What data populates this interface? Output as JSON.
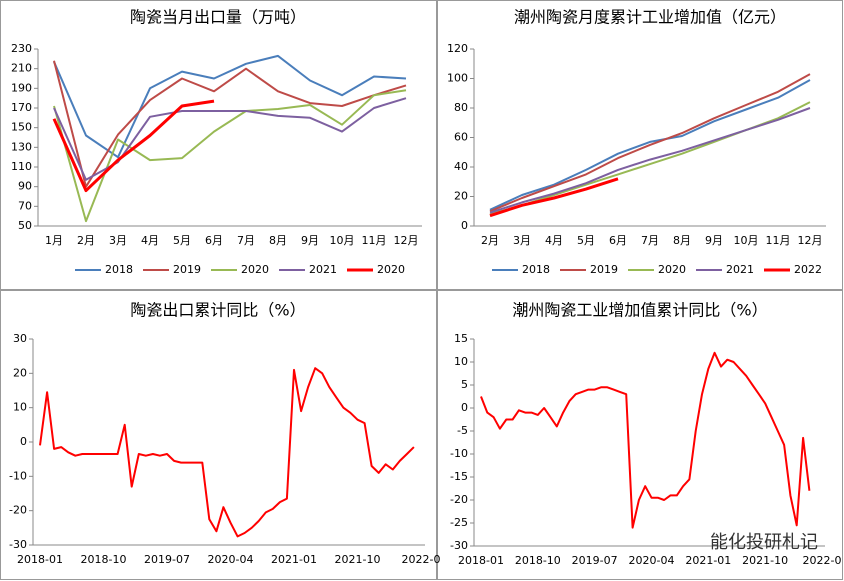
{
  "chart_data": [
    {
      "type": "line",
      "title": "陶瓷当月出口量（万吨）",
      "categories": [
        "1月",
        "2月",
        "3月",
        "4月",
        "5月",
        "6月",
        "7月",
        "8月",
        "9月",
        "10月",
        "11月",
        "12月"
      ],
      "ylim": [
        50,
        230
      ],
      "yticks": [
        50,
        70,
        90,
        110,
        130,
        150,
        170,
        190,
        210,
        230
      ],
      "series": [
        {
          "name": "2018",
          "color": "#4a7ebb",
          "values": [
            217,
            142,
            120,
            190,
            207,
            200,
            215,
            223,
            198,
            183,
            202,
            200
          ]
        },
        {
          "name": "2019",
          "color": "#be4b48",
          "values": [
            218,
            90,
            143,
            178,
            200,
            187,
            210,
            187,
            175,
            172,
            183,
            193
          ]
        },
        {
          "name": "2020",
          "color": "#98b954",
          "values": [
            172,
            55,
            138,
            117,
            119,
            146,
            167,
            169,
            173,
            153,
            183,
            188
          ]
        },
        {
          "name": "2021",
          "color": "#7d60a0",
          "values": [
            170,
            97,
            115,
            161,
            167,
            167,
            167,
            162,
            160,
            146,
            170,
            180
          ]
        },
        {
          "name": "2020",
          "color": "#ff0000",
          "values": [
            159,
            86,
            117,
            142,
            172,
            177,
            null,
            null,
            null,
            null,
            null,
            null
          ]
        }
      ]
    },
    {
      "type": "line",
      "title": "潮州陶瓷月度累计工业增加值（亿元）",
      "categories": [
        "2月",
        "3月",
        "4月",
        "5月",
        "6月",
        "7月",
        "8月",
        "9月",
        "10月",
        "11月",
        "12月"
      ],
      "ylim": [
        0,
        120
      ],
      "yticks": [
        0,
        20,
        40,
        60,
        80,
        100,
        120
      ],
      "series": [
        {
          "name": "2018",
          "color": "#4a7ebb",
          "values": [
            11,
            21,
            28,
            38,
            49,
            57,
            61,
            71,
            79,
            87,
            99
          ]
        },
        {
          "name": "2019",
          "color": "#be4b48",
          "values": [
            10,
            19,
            27,
            35,
            46,
            55,
            63,
            73,
            82,
            91,
            103
          ]
        },
        {
          "name": "2020",
          "color": "#98b954",
          "values": [
            8,
            14,
            21,
            28,
            35,
            42,
            49,
            57,
            65,
            73,
            84
          ]
        },
        {
          "name": "2021",
          "color": "#7d60a0",
          "values": [
            9,
            16,
            22,
            29,
            38,
            45,
            51,
            58,
            65,
            72,
            80
          ]
        },
        {
          "name": "2022",
          "color": "#ff0000",
          "values": [
            7,
            14,
            19,
            25,
            32,
            null,
            null,
            null,
            null,
            null,
            null
          ]
        }
      ]
    },
    {
      "type": "line",
      "title": "陶瓷出口累计同比（%）",
      "color": "#ff0000",
      "categories": [
        "2018-01",
        null,
        null,
        null,
        null,
        null,
        null,
        null,
        null,
        "2018-10",
        null,
        null,
        null,
        null,
        null,
        null,
        null,
        null,
        "2019-07",
        null,
        null,
        null,
        null,
        null,
        null,
        null,
        null,
        "2020-04",
        null,
        null,
        null,
        null,
        null,
        null,
        null,
        null,
        "2021-01",
        null,
        null,
        null,
        null,
        null,
        null,
        null,
        null,
        "2021-10",
        null,
        null,
        null,
        null,
        null,
        null,
        null,
        null,
        "2022-0"
      ],
      "ylim": [
        -30,
        30
      ],
      "yticks": [
        -30,
        -20,
        -10,
        0,
        10,
        20,
        30
      ],
      "values": [
        -1,
        14.5,
        -2,
        -1.5,
        -3,
        -4,
        -3.5,
        -3.5,
        -3.5,
        -3.5,
        -3.5,
        -3.5,
        5,
        -13,
        -3.5,
        -4,
        -3.5,
        -4,
        -3.5,
        -5.5,
        -6,
        -6,
        -6,
        -6,
        -22.5,
        -26,
        -19,
        -23.5,
        -27.5,
        -26.5,
        -25,
        -23,
        -20.5,
        -19.5,
        -17.5,
        -16.5,
        21,
        9,
        16,
        21.5,
        20,
        16,
        13,
        10,
        8.5,
        6.5,
        5.5,
        -7,
        -9,
        -6.5,
        -8,
        -5.5,
        -3.5,
        -1.5,
        null
      ]
    },
    {
      "type": "line",
      "title": "潮州陶瓷工业增加值累计同比（%）",
      "color": "#ff0000",
      "categories": [
        "2018-01",
        null,
        null,
        null,
        null,
        null,
        null,
        null,
        null,
        "2018-10",
        null,
        null,
        null,
        null,
        null,
        null,
        null,
        null,
        "2019-07",
        null,
        null,
        null,
        null,
        null,
        null,
        null,
        null,
        "2020-04",
        null,
        null,
        null,
        null,
        null,
        null,
        null,
        null,
        "2021-01",
        null,
        null,
        null,
        null,
        null,
        null,
        null,
        null,
        "2021-10",
        null,
        null,
        null,
        null,
        null,
        null,
        null,
        null,
        "2022-0"
      ],
      "ylim": [
        -30,
        15
      ],
      "yticks": [
        -30,
        -25,
        -20,
        -15,
        -10,
        -5,
        0,
        5,
        10,
        15
      ],
      "values": [
        2.5,
        -1,
        -2,
        -4.5,
        -2.5,
        -2.5,
        -0.5,
        -1,
        -1,
        -1.5,
        0,
        -2,
        -4,
        -1,
        1.5,
        3,
        3.5,
        4,
        4,
        4.5,
        4.5,
        4,
        3.5,
        3,
        -26,
        -20,
        -17,
        -19.5,
        -19.5,
        -20,
        -19,
        -19,
        -17,
        -15.5,
        -5,
        3,
        8.5,
        12,
        9,
        10.5,
        10,
        8.5,
        7,
        5,
        3,
        1,
        -2,
        -5,
        -8,
        -19,
        -25.5,
        -6.5,
        -18,
        null,
        null
      ],
      "watermark": "能化投研札记"
    }
  ]
}
